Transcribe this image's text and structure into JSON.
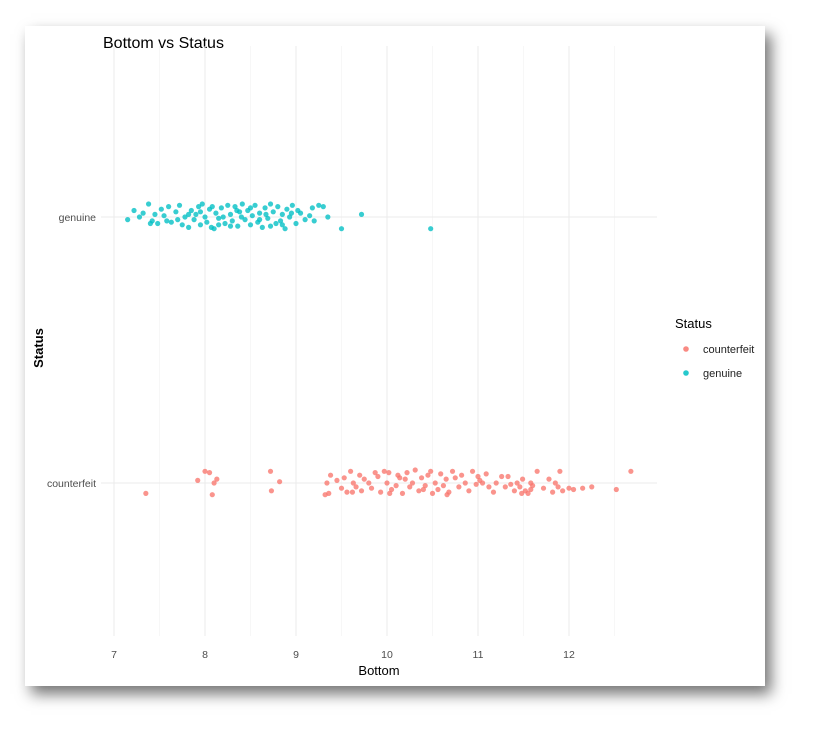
{
  "chart_data": {
    "type": "scatter",
    "title": "Bottom vs Status",
    "xlabel": "Bottom",
    "ylabel": "Status",
    "xlim": [
      7,
      12.8
    ],
    "x_ticks": [
      "7",
      "8",
      "9",
      "10",
      "11",
      "12"
    ],
    "categories": [
      "counterfeit",
      "genuine"
    ],
    "grid": true,
    "legend_position": "right",
    "legend_title": "Status",
    "series": [
      {
        "name": "genuine",
        "color": "#00BFC4",
        "points": [
          [
            7.15,
            -0.02
          ],
          [
            7.22,
            0.05
          ],
          [
            7.28,
            0.0
          ],
          [
            7.32,
            0.03
          ],
          [
            7.38,
            0.1
          ],
          [
            7.42,
            -0.03
          ],
          [
            7.45,
            0.02
          ],
          [
            7.48,
            -0.05
          ],
          [
            7.52,
            0.06
          ],
          [
            7.55,
            0.01
          ],
          [
            7.6,
            0.08
          ],
          [
            7.63,
            -0.04
          ],
          [
            7.68,
            0.04
          ],
          [
            7.72,
            0.09
          ],
          [
            7.75,
            -0.06
          ],
          [
            7.78,
            0.0
          ],
          [
            7.82,
            -0.08
          ],
          [
            7.85,
            0.05
          ],
          [
            7.88,
            -0.02
          ],
          [
            7.9,
            0.02
          ],
          [
            7.93,
            0.08
          ],
          [
            7.95,
            -0.06
          ],
          [
            7.97,
            0.1
          ],
          [
            8.0,
            0.0
          ],
          [
            8.02,
            -0.04
          ],
          [
            8.05,
            0.06
          ],
          [
            8.07,
            -0.08
          ],
          [
            8.1,
            -0.09
          ],
          [
            8.12,
            0.03
          ],
          [
            8.15,
            -0.01
          ],
          [
            8.18,
            0.07
          ],
          [
            8.2,
            0.0
          ],
          [
            8.22,
            -0.05
          ],
          [
            8.25,
            0.09
          ],
          [
            8.28,
            0.02
          ],
          [
            8.3,
            -0.03
          ],
          [
            8.33,
            0.08
          ],
          [
            8.36,
            -0.07
          ],
          [
            8.38,
            0.04
          ],
          [
            8.41,
            0.1
          ],
          [
            8.44,
            -0.02
          ],
          [
            8.47,
            0.05
          ],
          [
            8.5,
            -0.06
          ],
          [
            8.52,
            0.01
          ],
          [
            8.55,
            0.09
          ],
          [
            8.58,
            -0.04
          ],
          [
            8.6,
            0.03
          ],
          [
            8.63,
            -0.08
          ],
          [
            8.66,
            0.07
          ],
          [
            8.69,
            -0.01
          ],
          [
            8.72,
            0.1
          ],
          [
            8.75,
            0.04
          ],
          [
            8.78,
            -0.05
          ],
          [
            8.8,
            0.08
          ],
          [
            8.83,
            -0.03
          ],
          [
            8.85,
            0.02
          ],
          [
            8.88,
            -0.09
          ],
          [
            8.9,
            0.06
          ],
          [
            8.93,
            0.0
          ],
          [
            8.96,
            0.09
          ],
          [
            9.0,
            -0.05
          ],
          [
            9.05,
            0.03
          ],
          [
            9.1,
            -0.02
          ],
          [
            9.15,
            0.01
          ],
          [
            9.2,
            -0.03
          ],
          [
            9.25,
            0.09
          ],
          [
            9.3,
            0.08
          ],
          [
            9.35,
            0.0
          ],
          [
            9.5,
            -0.09
          ],
          [
            9.72,
            0.02
          ],
          [
            10.48,
            -0.09
          ],
          [
            7.7,
            -0.02
          ],
          [
            7.95,
            0.04
          ],
          [
            8.15,
            -0.06
          ],
          [
            8.4,
            0.0
          ],
          [
            8.6,
            -0.02
          ],
          [
            8.85,
            -0.06
          ],
          [
            9.02,
            0.05
          ],
          [
            7.58,
            -0.03
          ],
          [
            8.28,
            -0.07
          ],
          [
            8.5,
            0.07
          ],
          [
            8.72,
            -0.07
          ],
          [
            8.95,
            0.03
          ],
          [
            9.18,
            0.07
          ],
          [
            7.4,
            -0.05
          ],
          [
            7.82,
            0.02
          ],
          [
            8.08,
            0.08
          ],
          [
            8.35,
            0.05
          ],
          [
            8.67,
            0.02
          ]
        ]
      },
      {
        "name": "counterfeit",
        "color": "#F8766D",
        "points": [
          [
            7.35,
            -0.08
          ],
          [
            7.92,
            0.02
          ],
          [
            8.0,
            0.09
          ],
          [
            8.05,
            0.08
          ],
          [
            8.08,
            -0.09
          ],
          [
            8.1,
            0.0
          ],
          [
            8.13,
            0.03
          ],
          [
            8.72,
            0.09
          ],
          [
            8.73,
            -0.06
          ],
          [
            8.82,
            0.01
          ],
          [
            9.32,
            -0.09
          ],
          [
            9.34,
            0.0
          ],
          [
            9.36,
            -0.08
          ],
          [
            9.38,
            0.06
          ],
          [
            9.45,
            0.02
          ],
          [
            9.5,
            -0.04
          ],
          [
            9.53,
            0.04
          ],
          [
            9.56,
            -0.07
          ],
          [
            9.6,
            0.09
          ],
          [
            9.63,
            0.0
          ],
          [
            9.66,
            -0.03
          ],
          [
            9.7,
            0.06
          ],
          [
            9.72,
            -0.06
          ],
          [
            9.75,
            0.03
          ],
          [
            9.8,
            0.0
          ],
          [
            9.83,
            -0.04
          ],
          [
            9.87,
            0.08
          ],
          [
            9.9,
            0.05
          ],
          [
            9.93,
            -0.07
          ],
          [
            9.97,
            0.09
          ],
          [
            10.0,
            0.0
          ],
          [
            10.02,
            0.08
          ],
          [
            10.05,
            -0.05
          ],
          [
            10.1,
            -0.02
          ],
          [
            10.14,
            0.04
          ],
          [
            10.17,
            -0.08
          ],
          [
            10.2,
            0.03
          ],
          [
            10.22,
            0.08
          ],
          [
            10.25,
            -0.03
          ],
          [
            10.28,
            0.0
          ],
          [
            10.31,
            0.1
          ],
          [
            10.35,
            -0.06
          ],
          [
            10.38,
            0.04
          ],
          [
            10.42,
            -0.02
          ],
          [
            10.45,
            0.06
          ],
          [
            10.48,
            0.09
          ],
          [
            10.5,
            -0.08
          ],
          [
            10.53,
            0.0
          ],
          [
            10.56,
            -0.05
          ],
          [
            10.59,
            0.07
          ],
          [
            10.62,
            -0.02
          ],
          [
            10.65,
            0.03
          ],
          [
            10.68,
            -0.07
          ],
          [
            10.72,
            0.09
          ],
          [
            10.75,
            0.04
          ],
          [
            10.79,
            -0.03
          ],
          [
            10.82,
            0.06
          ],
          [
            10.86,
            0.0
          ],
          [
            10.9,
            -0.06
          ],
          [
            10.94,
            0.09
          ],
          [
            10.98,
            -0.01
          ],
          [
            11.0,
            0.05
          ],
          [
            11.05,
            0.0
          ],
          [
            11.09,
            0.07
          ],
          [
            11.12,
            -0.03
          ],
          [
            11.17,
            -0.07
          ],
          [
            11.2,
            0.0
          ],
          [
            11.26,
            0.05
          ],
          [
            11.3,
            -0.03
          ],
          [
            11.33,
            0.05
          ],
          [
            11.36,
            -0.01
          ],
          [
            11.4,
            -0.06
          ],
          [
            11.43,
            0.0
          ],
          [
            11.46,
            -0.03
          ],
          [
            11.49,
            0.03
          ],
          [
            11.52,
            -0.06
          ],
          [
            11.55,
            -0.08
          ],
          [
            11.58,
            0.0
          ],
          [
            11.6,
            -0.02
          ],
          [
            11.65,
            0.09
          ],
          [
            11.72,
            -0.04
          ],
          [
            11.78,
            0.03
          ],
          [
            11.82,
            -0.07
          ],
          [
            11.85,
            0.0
          ],
          [
            11.88,
            -0.03
          ],
          [
            11.9,
            0.09
          ],
          [
            11.93,
            -0.06
          ],
          [
            12.0,
            -0.04
          ],
          [
            12.05,
            -0.05
          ],
          [
            12.15,
            -0.04
          ],
          [
            12.25,
            -0.03
          ],
          [
            12.52,
            -0.05
          ],
          [
            12.68,
            0.09
          ],
          [
            9.62,
            -0.07
          ],
          [
            10.03,
            -0.08
          ],
          [
            10.4,
            -0.05
          ],
          [
            10.66,
            -0.09
          ],
          [
            11.02,
            0.02
          ],
          [
            11.48,
            -0.08
          ],
          [
            11.58,
            -0.05
          ],
          [
            10.12,
            0.06
          ]
        ]
      }
    ]
  },
  "legend": {
    "title": "Status",
    "items": [
      {
        "label": "counterfeit",
        "color": "#F8766D"
      },
      {
        "label": "genuine",
        "color": "#00BFC4"
      }
    ]
  }
}
